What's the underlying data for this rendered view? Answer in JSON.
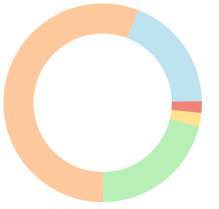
{
  "chart_data": {
    "type": "donut",
    "values": [
      18.9,
      1.9,
      2.2,
      21.1,
      55.9
    ],
    "colors": [
      "#bde2f0",
      "#ee8377",
      "#fde28f",
      "#b8efb6",
      "#ffc89d"
    ]
  }
}
